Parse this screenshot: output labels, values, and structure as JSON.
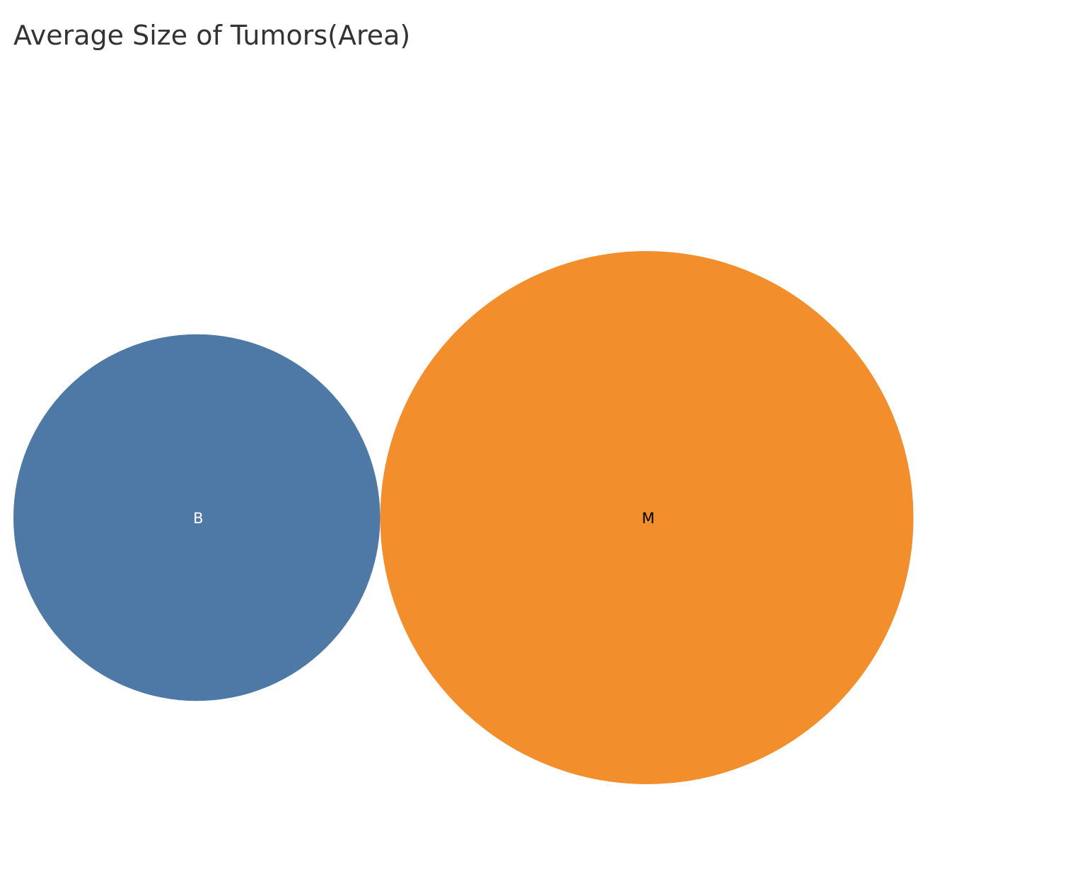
{
  "chart_data": {
    "type": "bubble",
    "title": "Average Size of Tumors(Area)",
    "categories": [
      "B",
      "M"
    ],
    "values": [
      462.8,
      978.4
    ],
    "colors": [
      "#4e79a7",
      "#f28e2b"
    ],
    "label_colors": [
      "#ffffff",
      "#000000"
    ],
    "legend": "none",
    "grid": false
  }
}
